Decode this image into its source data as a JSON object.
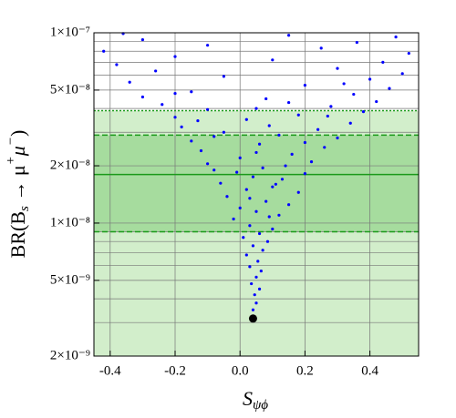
{
  "chart_data": {
    "type": "scatter",
    "xlabel": {
      "main": "S",
      "sub": "ψϕ"
    },
    "ylabel": [
      "BR(B",
      "s",
      " → μ",
      "+",
      "μ",
      "−",
      ")"
    ],
    "ylabel_scripts": [
      "",
      "sub",
      "",
      "sup",
      "",
      "sup",
      ""
    ],
    "xlim": [
      -0.45,
      0.55
    ],
    "ylim": [
      2e-09,
      1e-07
    ],
    "log_y": true,
    "xticks": [
      -0.4,
      -0.2,
      {
        "value": 0,
        "label": "0.0"
      },
      0.2,
      0.4
    ],
    "yticks": [
      {
        "value": 2e-09,
        "label": "2×10⁻⁹"
      },
      {
        "value": 5e-09,
        "label": "5×10⁻⁹"
      },
      {
        "value": 1e-08,
        "label": "1×10⁻⁸"
      },
      {
        "value": 2e-08,
        "label": "2×10⁻⁸"
      },
      {
        "value": 5e-08,
        "label": "5×10⁻⁸"
      },
      {
        "value": 1e-07,
        "label": "1×10⁻⁷"
      }
    ],
    "ygrid": [
      3e-09,
      4e-09,
      5e-09,
      6e-09,
      7e-09,
      8e-09,
      9e-09,
      1e-08,
      2e-08,
      3e-08,
      4e-08,
      5e-08,
      6e-08,
      7e-08,
      8e-08,
      9e-08
    ],
    "grid": true,
    "bands": [
      {
        "ylim": [
          2e-09,
          3.9e-08
        ],
        "color": "#d2eecb"
      },
      {
        "ylim": [
          9e-09,
          2.9e-08
        ],
        "color": "#a6dc9e"
      }
    ],
    "hlines": [
      {
        "y": 3.9e-08,
        "style": "dotted"
      },
      {
        "y": 2.9e-08,
        "style": "dashed"
      },
      {
        "y": 1.8e-08,
        "style": "solid"
      },
      {
        "y": 9e-09,
        "style": "dashed"
      }
    ],
    "hline_color": "#1a9a1a",
    "color": "#0000ff",
    "x": [
      0.04,
      0.05,
      0.045,
      0.06,
      0.035,
      0.05,
      0.065,
      0.03,
      0.055,
      0.02,
      0.07,
      0.04,
      0.085,
      0.01,
      0.06,
      0.1,
      0.03,
      -0.02,
      0.12,
      0.05,
      0,
      0.15,
      0.08,
      -0.04,
      0.18,
      0.02,
      0.1,
      -0.06,
      0.13,
      0.04,
      0.2,
      -0.08,
      0.07,
      -0.1,
      0.22,
      0,
      0.16,
      -0.12,
      0.26,
      0.06,
      -0.15,
      0.3,
      0.12,
      -0.05,
      0.24,
      -0.18,
      0.34,
      0.02,
      -0.2,
      0.18,
      0.38,
      -0.1,
      0.28,
      -0.24,
      0.42,
      0.08,
      -0.3,
      0.35,
      -0.15,
      0.46,
      0.2,
      -0.34,
      0.4,
      -0.05,
      0.5,
      -0.26,
      0.3,
      -0.38,
      0.44,
      0.1,
      -0.2,
      0.52,
      -0.42,
      0.25,
      -0.1,
      0.36,
      -0.3,
      0.48,
      0.15,
      -0.36,
      0.09,
      0.03,
      0.11,
      -0.01,
      0.14,
      0.05,
      0.2,
      -0.08,
      0.09,
      -0.13,
      0.27,
      0.05,
      0.15,
      -0.2,
      0.32
    ],
    "values": [
      3.5e-09,
      3.8e-09,
      4.2e-09,
      4.5e-09,
      4.8e-09,
      5.2e-09,
      5.6e-09,
      5.9e-09,
      6.3e-09,
      6.8e-09,
      7.2e-09,
      7.6e-09,
      8e-09,
      8.4e-09,
      8.8e-09,
      9.3e-09,
      9.7e-09,
      1.05e-08,
      1.1e-08,
      1.15e-08,
      1.2e-08,
      1.25e-08,
      1.3e-08,
      1.38e-08,
      1.45e-08,
      1.5e-08,
      1.55e-08,
      1.62e-08,
      1.7e-08,
      1.75e-08,
      1.82e-08,
      1.9e-08,
      1.95e-08,
      2.05e-08,
      2.1e-08,
      2.2e-08,
      2.3e-08,
      2.4e-08,
      2.5e-08,
      2.6e-08,
      2.7e-08,
      2.8e-08,
      2.9e-08,
      3e-08,
      3.1e-08,
      3.2e-08,
      3.35e-08,
      3.5e-08,
      3.6e-08,
      3.7e-08,
      3.85e-08,
      3.95e-08,
      4.1e-08,
      4.2e-08,
      4.35e-08,
      4.5e-08,
      4.6e-08,
      4.75e-08,
      4.9e-08,
      5.1e-08,
      5.3e-08,
      5.5e-08,
      5.7e-08,
      5.9e-08,
      6.1e-08,
      6.3e-08,
      6.5e-08,
      6.8e-08,
      7e-08,
      7.2e-08,
      7.5e-08,
      7.8e-08,
      8e-08,
      8.3e-08,
      8.6e-08,
      8.9e-08,
      9.2e-08,
      9.5e-08,
      9.7e-08,
      9.9e-08,
      1.08e-08,
      1.35e-08,
      1.6e-08,
      1.85e-08,
      2e-08,
      2.35e-08,
      2.65e-08,
      2.85e-08,
      3.25e-08,
      3.45e-08,
      3.65e-08,
      4e-08,
      4.3e-08,
      4.8e-08,
      5.4e-08
    ],
    "highlight_point": {
      "x": 0.04,
      "y": 3.15e-09,
      "color": "#000000"
    }
  }
}
